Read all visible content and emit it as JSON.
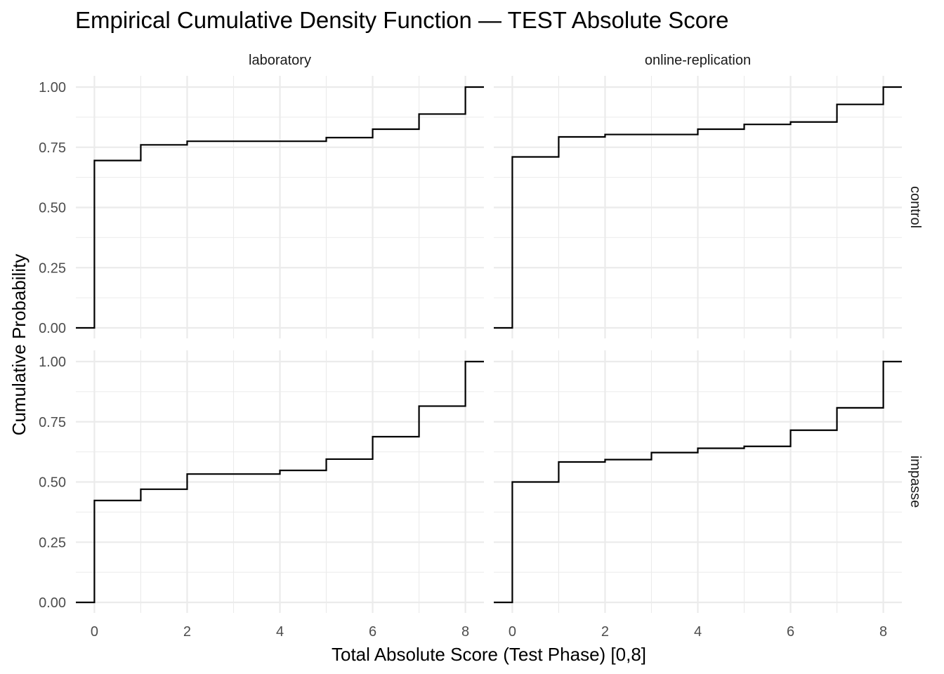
{
  "chart_data": {
    "type": "line",
    "step": true,
    "title": "Empirical Cumulative Density Function — TEST Absolute Score",
    "xlabel": "Total Absolute Score (Test Phase) [0,8]",
    "ylabel": "Cumulative Probability",
    "xlim": [
      -0.4,
      8.4
    ],
    "ylim": [
      0,
      1
    ],
    "x_ticks": [
      "0",
      "2",
      "4",
      "6",
      "8"
    ],
    "y_ticks": [
      "0.00",
      "0.25",
      "0.50",
      "0.75",
      "1.00"
    ],
    "grid": true,
    "column_facets": [
      "laboratory",
      "online-replication"
    ],
    "row_facets": [
      "control",
      "impasse"
    ],
    "panels": [
      {
        "col": "laboratory",
        "row": "control",
        "x": [
          0,
          1,
          2,
          5,
          6,
          7,
          8
        ],
        "y": [
          0.695,
          0.76,
          0.775,
          0.79,
          0.825,
          0.888,
          1.0
        ]
      },
      {
        "col": "online-replication",
        "row": "control",
        "x": [
          0,
          1,
          2,
          4,
          5,
          6,
          7,
          8
        ],
        "y": [
          0.71,
          0.793,
          0.803,
          0.825,
          0.845,
          0.855,
          0.928,
          1.0
        ]
      },
      {
        "col": "laboratory",
        "row": "impasse",
        "x": [
          0,
          1,
          2,
          4,
          5,
          6,
          7,
          8
        ],
        "y": [
          0.423,
          0.47,
          0.533,
          0.548,
          0.595,
          0.688,
          0.815,
          1.0
        ]
      },
      {
        "col": "online-replication",
        "row": "impasse",
        "x": [
          0,
          1,
          2,
          3,
          4,
          5,
          6,
          7,
          8
        ],
        "y": [
          0.5,
          0.583,
          0.593,
          0.622,
          0.64,
          0.648,
          0.715,
          0.808,
          1.0
        ]
      }
    ]
  }
}
